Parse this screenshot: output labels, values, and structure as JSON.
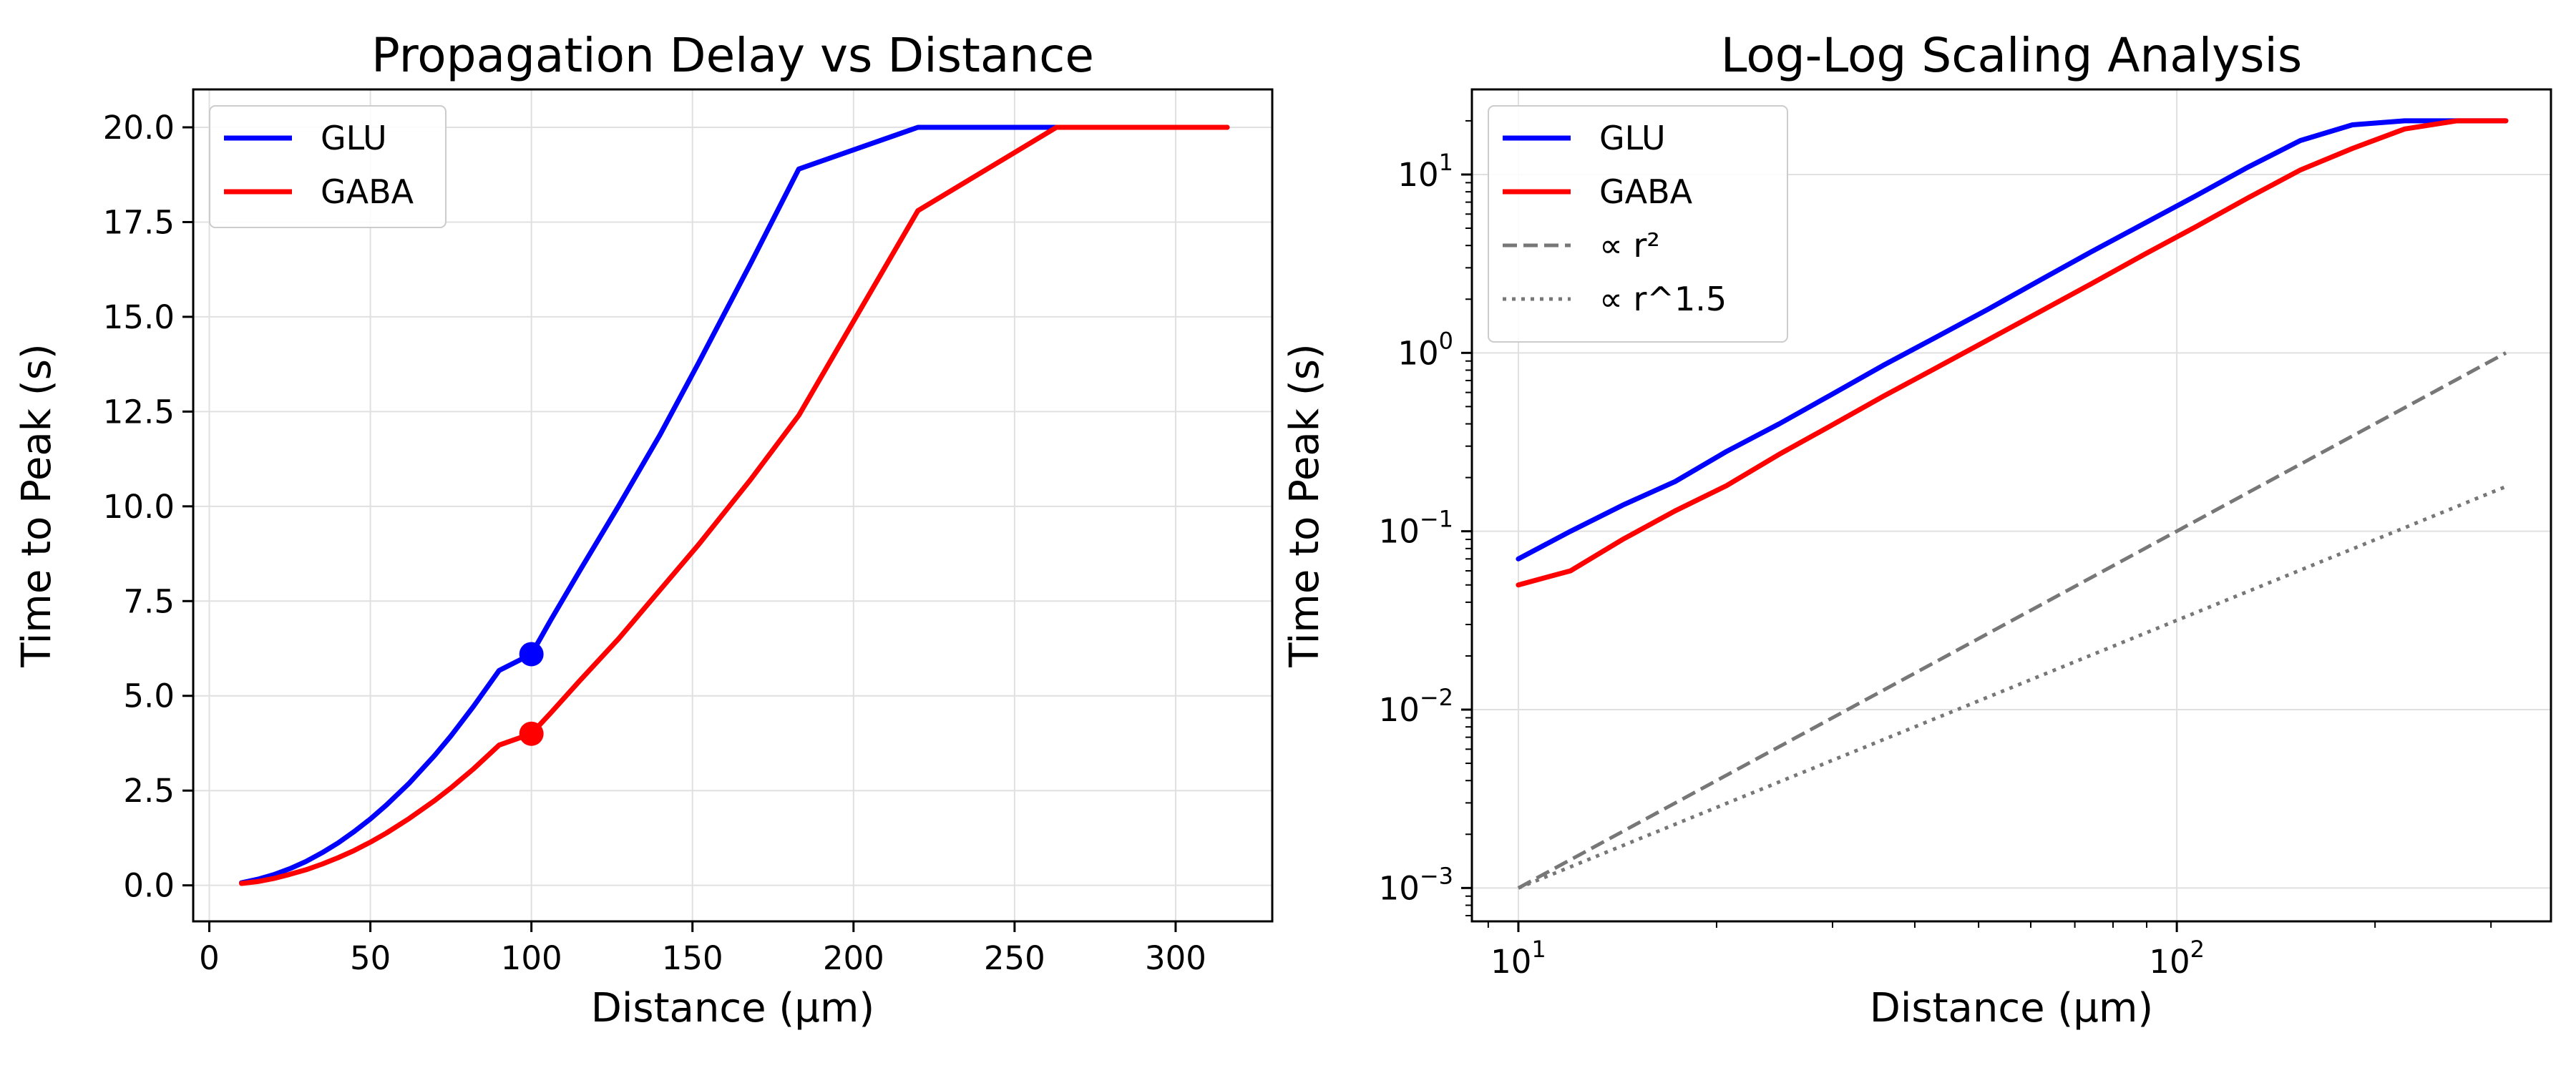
{
  "chart_data": [
    {
      "type": "line",
      "title": "Propagation Delay vs Distance",
      "xlabel": "Distance (μm)",
      "ylabel": "Time to Peak (s)",
      "xlim": [
        -5,
        330
      ],
      "ylim": [
        -0.95,
        21.0
      ],
      "xticks": [
        0,
        50,
        100,
        150,
        200,
        250,
        300
      ],
      "xtick_labels": [
        "0",
        "50",
        "100",
        "150",
        "200",
        "250",
        "300"
      ],
      "yticks": [
        0,
        2.5,
        5,
        7.5,
        10,
        12.5,
        15,
        17.5,
        20
      ],
      "ytick_labels": [
        "0.0",
        "2.5",
        "5.0",
        "7.5",
        "10.0",
        "12.5",
        "15.0",
        "17.5",
        "20.0"
      ],
      "grid": true,
      "legend_position": "upper-left",
      "series": [
        {
          "name": "GLU",
          "color": "#0000ff",
          "x": [
            10,
            15,
            20,
            25,
            30,
            35,
            40,
            45,
            50,
            55,
            62,
            70,
            75,
            82,
            90,
            100,
            106,
            115,
            127,
            140,
            152,
            168,
            183,
            220,
            263,
            316
          ],
          "y": [
            0.07,
            0.16,
            0.28,
            0.44,
            0.63,
            0.86,
            1.12,
            1.42,
            1.75,
            2.12,
            2.69,
            3.43,
            3.94,
            4.72,
            5.67,
            6.1,
            7.0,
            8.3,
            10.0,
            11.9,
            13.8,
            16.4,
            18.9,
            20.0,
            20.0,
            20.0
          ]
        },
        {
          "name": "GABA",
          "color": "#ff0000",
          "x": [
            10,
            15,
            20,
            25,
            30,
            35,
            40,
            45,
            50,
            55,
            62,
            70,
            75,
            82,
            90,
            100,
            106,
            115,
            127,
            140,
            152,
            168,
            183,
            220,
            263,
            316
          ],
          "y": [
            0.05,
            0.1,
            0.18,
            0.29,
            0.41,
            0.56,
            0.73,
            0.92,
            1.14,
            1.38,
            1.76,
            2.24,
            2.57,
            3.07,
            3.7,
            4.0,
            4.55,
            5.4,
            6.5,
            7.8,
            9.0,
            10.7,
            12.4,
            17.8,
            20.0,
            20.0
          ]
        }
      ],
      "markers": [
        {
          "series": "GLU",
          "x": 100,
          "y": 6.1,
          "color": "#0000ff"
        },
        {
          "series": "GABA",
          "x": 100,
          "y": 4.0,
          "color": "#ff0000"
        }
      ]
    },
    {
      "type": "line",
      "title": "Log-Log Scaling Analysis",
      "xlabel": "Distance (μm)",
      "ylabel": "Time to Peak (s)",
      "xscale": "log",
      "yscale": "log",
      "xlim": [
        8.5,
        370
      ],
      "ylim": [
        0.00065,
        30
      ],
      "xticks": [
        10,
        100
      ],
      "xtick_labels": [
        {
          "base": "10",
          "exp": "1"
        },
        {
          "base": "10",
          "exp": "2"
        }
      ],
      "yticks": [
        0.001,
        0.01,
        0.1,
        1,
        10
      ],
      "ytick_labels": [
        {
          "base": "10",
          "exp": "−3"
        },
        {
          "base": "10",
          "exp": "−2"
        },
        {
          "base": "10",
          "exp": "−1"
        },
        {
          "base": "10",
          "exp": "0"
        },
        {
          "base": "10",
          "exp": "1"
        }
      ],
      "grid": true,
      "legend_position": "upper-left",
      "series": [
        {
          "name": "GLU",
          "color": "#0000ff",
          "style": "solid",
          "x": [
            10,
            12,
            14.4,
            17.3,
            20.7,
            24.9,
            29.8,
            35.8,
            43,
            51.6,
            61.9,
            74.3,
            89.1,
            106.9,
            128.3,
            154,
            184.8,
            221.8,
            266.1,
            316
          ],
          "y": [
            0.07,
            0.1,
            0.14,
            0.19,
            0.28,
            0.4,
            0.58,
            0.85,
            1.22,
            1.75,
            2.55,
            3.7,
            5.3,
            7.6,
            11.0,
            15.5,
            19.0,
            20.0,
            20.0,
            20.0
          ]
        },
        {
          "name": "GABA",
          "color": "#ff0000",
          "style": "solid",
          "x": [
            10,
            12,
            14.4,
            17.3,
            20.7,
            24.9,
            29.8,
            35.8,
            43,
            51.6,
            61.9,
            74.3,
            89.1,
            106.9,
            128.3,
            154,
            184.8,
            221.8,
            266.1,
            316
          ],
          "y": [
            0.05,
            0.06,
            0.09,
            0.13,
            0.18,
            0.27,
            0.39,
            0.57,
            0.82,
            1.18,
            1.7,
            2.45,
            3.55,
            5.1,
            7.4,
            10.6,
            14.0,
            18.0,
            20.0,
            20.0
          ]
        },
        {
          "name": "∝ r²",
          "color": "#777777",
          "style": "dashed",
          "x": [
            10,
            316
          ],
          "y": [
            0.001,
            1.0
          ]
        },
        {
          "name": "∝ r^1.5",
          "color": "#777777",
          "style": "dotted",
          "x": [
            10,
            316
          ],
          "y": [
            0.001,
            0.178
          ]
        }
      ]
    }
  ]
}
